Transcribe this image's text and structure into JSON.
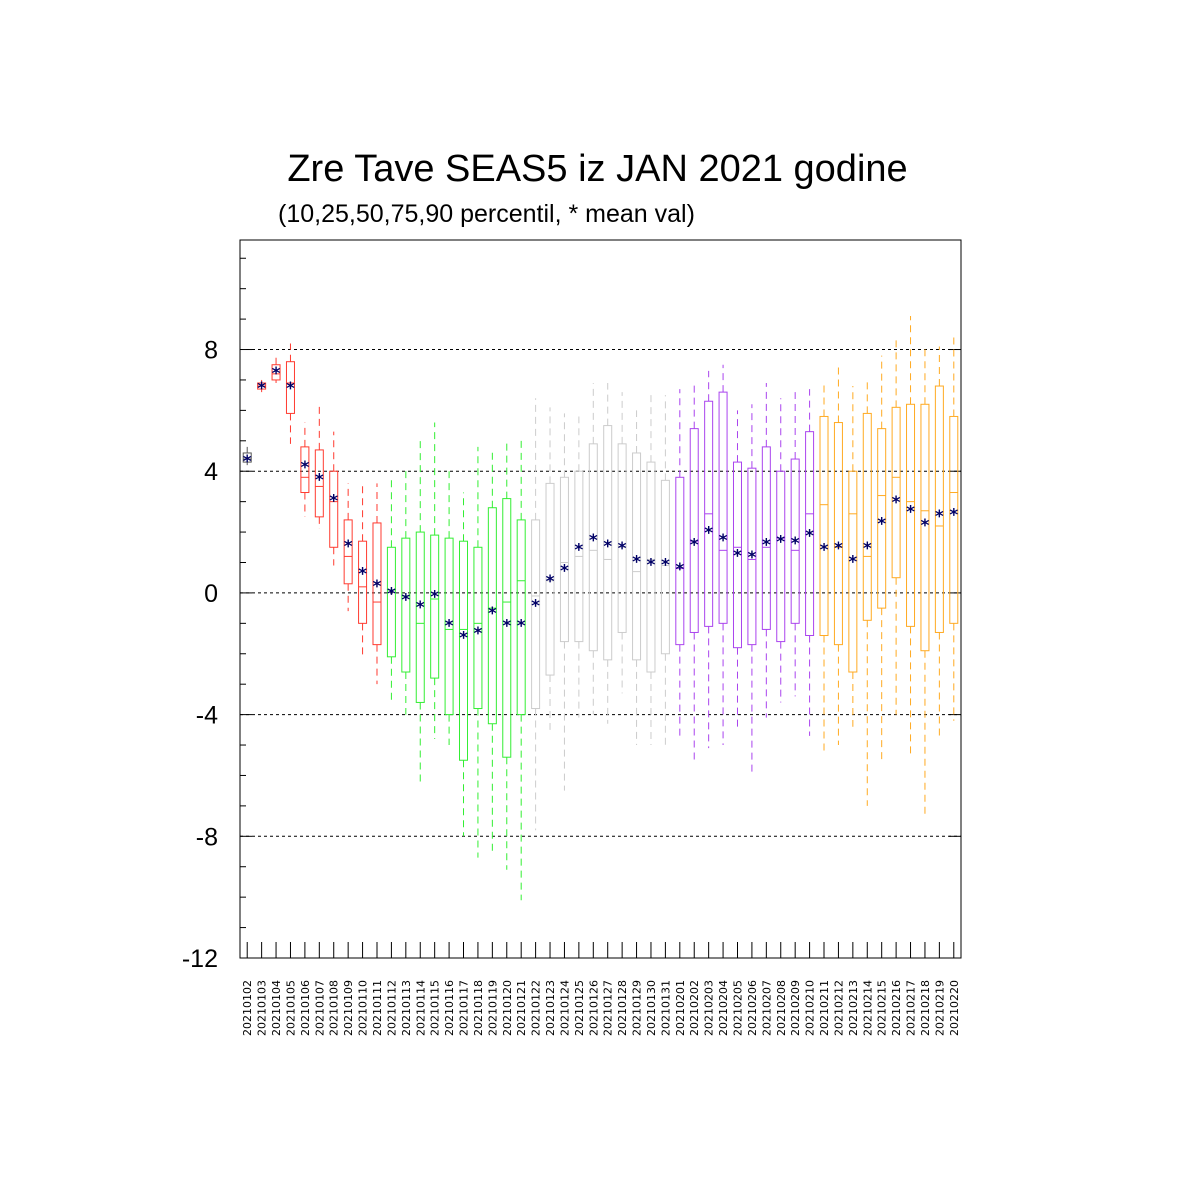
{
  "chart_data": {
    "type": "boxplot",
    "title": "Zre Tave SEAS5 iz JAN 2021 godine",
    "subtitle": "(10,25,50,75,90 percentil, * mean val)",
    "ylim": [
      -12,
      11.6
    ],
    "yticks": [
      -12,
      -8,
      -4,
      0,
      4,
      8
    ],
    "grid_lines": [
      -8,
      -4,
      0,
      4,
      8
    ],
    "categories": [
      "20210102",
      "20210103",
      "20210104",
      "20210105",
      "20210106",
      "20210107",
      "20210108",
      "20210109",
      "20210110",
      "20210111",
      "20210112",
      "20210113",
      "20210114",
      "20210115",
      "20210116",
      "20210117",
      "20210118",
      "20210119",
      "20210120",
      "20210121",
      "20210122",
      "20210123",
      "20210124",
      "20210125",
      "20210126",
      "20210127",
      "20210128",
      "20210129",
      "20210130",
      "20210131",
      "20210201",
      "20210202",
      "20210203",
      "20210204",
      "20210205",
      "20210206",
      "20210207",
      "20210208",
      "20210209",
      "20210210",
      "20210211",
      "20210212",
      "20210213",
      "20210214",
      "20210215",
      "20210216",
      "20210217",
      "20210218",
      "20210219",
      "20210220"
    ],
    "colors": [
      "#555555",
      "#ff3b30",
      "#ff3b30",
      "#ff3b30",
      "#ff3b30",
      "#ff3b30",
      "#ff3b30",
      "#ff3b30",
      "#ff3b30",
      "#ff3b30",
      "#33ee33",
      "#33ee33",
      "#33ee33",
      "#33ee33",
      "#33ee33",
      "#33ee33",
      "#33ee33",
      "#33ee33",
      "#33ee33",
      "#33ee33",
      "#cccccc",
      "#cccccc",
      "#cccccc",
      "#cccccc",
      "#cccccc",
      "#cccccc",
      "#cccccc",
      "#cccccc",
      "#cccccc",
      "#cccccc",
      "#aa44ee",
      "#aa44ee",
      "#aa44ee",
      "#aa44ee",
      "#aa44ee",
      "#aa44ee",
      "#aa44ee",
      "#aa44ee",
      "#aa44ee",
      "#aa44ee",
      "#ffaa22",
      "#ffaa22",
      "#ffaa22",
      "#ffaa22",
      "#ffaa22",
      "#ffaa22",
      "#ffaa22",
      "#ffaa22",
      "#ffaa22",
      "#ffaa22"
    ],
    "mean_color": "#000066",
    "p10": [
      4.2,
      6.6,
      6.9,
      4.9,
      2.5,
      2.1,
      0.9,
      -0.6,
      -2.1,
      -3.0,
      -3.6,
      -4.0,
      -6.3,
      -4.8,
      -5.0,
      -8.0,
      -8.7,
      -8.6,
      -9.1,
      -10.1,
      -7.8,
      -4.5,
      -6.5,
      -4.1,
      -4.0,
      -4.3,
      -3.3,
      -5.0,
      -5.0,
      -5.0,
      -4.7,
      -5.5,
      -5.1,
      -5.0,
      -4.5,
      -5.9,
      -4.1,
      -3.6,
      -3.4,
      -4.7,
      -5.3,
      -5.0,
      -4.4,
      -7.0,
      -5.5,
      -4.0,
      -5.3,
      -7.4,
      -4.8,
      -4.2
    ],
    "p25": [
      4.3,
      6.7,
      7.0,
      5.9,
      3.3,
      2.5,
      1.5,
      0.3,
      -1.0,
      -1.7,
      -2.1,
      -2.6,
      -3.6,
      -2.8,
      -4.0,
      -5.5,
      -3.8,
      -4.3,
      -5.4,
      -4.0,
      -3.8,
      -2.7,
      -1.6,
      -1.6,
      -1.9,
      -2.2,
      -1.3,
      -2.2,
      -2.6,
      -2.0,
      -1.7,
      -1.3,
      -1.1,
      -1.0,
      -1.8,
      -1.7,
      -1.2,
      -1.6,
      -1.0,
      -1.4,
      -1.4,
      -1.7,
      -2.6,
      -0.9,
      -0.5,
      0.5,
      -1.1,
      -1.9,
      -1.3,
      -1.0
    ],
    "p50": [
      4.4,
      6.8,
      7.2,
      6.9,
      3.8,
      3.5,
      3.0,
      1.2,
      0.2,
      -0.3,
      0.1,
      -0.1,
      -1.0,
      -0.2,
      -1.2,
      -1.2,
      -1.0,
      -0.5,
      -0.3,
      0.4,
      -0.1,
      0.4,
      1.0,
      1.2,
      1.4,
      1.1,
      1.5,
      0.7,
      1.1,
      0.9,
      0.8,
      1.7,
      2.6,
      1.4,
      1.5,
      1.1,
      1.5,
      1.8,
      1.4,
      2.6,
      2.9,
      1.5,
      2.6,
      1.2,
      3.2,
      3.8,
      3.0,
      2.7,
      2.2,
      3.3
    ],
    "p75": [
      4.6,
      6.9,
      7.5,
      7.6,
      4.8,
      4.7,
      4.0,
      2.4,
      1.7,
      2.3,
      1.5,
      1.8,
      2.0,
      1.9,
      1.8,
      1.7,
      1.5,
      2.8,
      3.1,
      2.4,
      2.4,
      3.6,
      3.8,
      4.0,
      4.9,
      5.5,
      4.9,
      4.6,
      4.3,
      3.7,
      3.8,
      5.4,
      6.3,
      6.6,
      4.3,
      4.1,
      4.8,
      4.0,
      4.4,
      5.3,
      5.8,
      5.6,
      4.0,
      5.9,
      5.4,
      6.1,
      6.2,
      6.2,
      6.8,
      5.8
    ],
    "p90": [
      4.8,
      7.0,
      7.8,
      8.2,
      5.6,
      6.2,
      5.3,
      3.6,
      3.6,
      3.6,
      3.8,
      4.0,
      5.0,
      5.6,
      4.0,
      3.3,
      4.8,
      4.7,
      5.0,
      5.0,
      6.4,
      6.1,
      5.9,
      5.8,
      6.9,
      6.9,
      6.6,
      6.0,
      6.5,
      6.5,
      6.7,
      6.9,
      7.3,
      7.5,
      6.0,
      6.2,
      6.9,
      6.4,
      6.6,
      6.7,
      6.9,
      7.5,
      6.8,
      7.0,
      7.8,
      8.4,
      9.1,
      8.1,
      8.1,
      8.4
    ],
    "mean": [
      4.4,
      6.8,
      7.3,
      6.8,
      4.2,
      3.8,
      3.1,
      1.6,
      0.7,
      0.3,
      0.05,
      -0.15,
      -0.4,
      -0.05,
      -1.0,
      -1.4,
      -1.25,
      -0.6,
      -1.0,
      -1.0,
      -0.35,
      0.45,
      0.8,
      1.5,
      1.8,
      1.6,
      1.55,
      1.1,
      1.0,
      1.0,
      0.85,
      1.65,
      2.05,
      1.8,
      1.3,
      1.25,
      1.65,
      1.75,
      1.7,
      1.95,
      1.5,
      1.55,
      1.1,
      1.55,
      2.35,
      3.05,
      2.75,
      2.3,
      2.6,
      2.65
    ]
  }
}
